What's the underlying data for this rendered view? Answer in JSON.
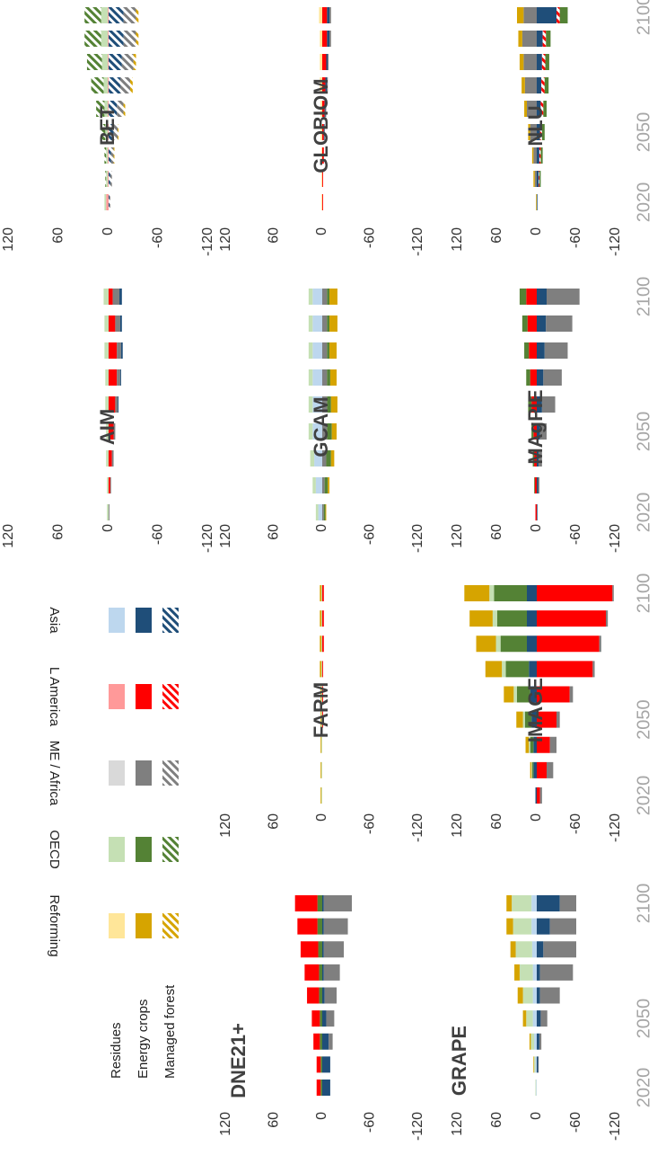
{
  "chart_data": {
    "type": "bar",
    "categories": [
      "2020",
      null,
      null,
      "2050",
      null,
      null,
      null,
      null,
      "2100"
    ],
    "ylim": [
      -120,
      120
    ],
    "yticks": [
      120,
      60,
      0,
      -60,
      -120
    ],
    "legend": {
      "columns": [
        {
          "name": "Reforming",
          "colors": [
            "#ffe699",
            "#d6a400",
            "#d6a400"
          ]
        },
        {
          "name": "OECD",
          "colors": [
            "#c5e0b4",
            "#548235",
            "#548235"
          ]
        },
        {
          "name": "ME / Africa",
          "colors": [
            "#d9d9d9",
            "#7f7f7f",
            "#7f7f7f"
          ]
        },
        {
          "name": "L America",
          "colors": [
            "#ff9999",
            "#ff0000",
            "#ff0000"
          ]
        },
        {
          "name": "Asia",
          "colors": [
            "#bdd7ee",
            "#1f4e79",
            "#1f4e79"
          ]
        }
      ],
      "rows": [
        "Residues",
        "Energy crops",
        "Managed forest"
      ]
    },
    "panels": [
      {
        "title": "AIM",
        "series": [
          {
            "region": "OECD",
            "kind": "Residues",
            "values": [
              2,
              2,
              3,
              3,
              4,
              4,
              5,
              5,
              6
            ]
          },
          {
            "region": "L America",
            "kind": "Energy crops",
            "values": [
              0,
              -2,
              -4,
              -6,
              -8,
              -10,
              -10,
              -8,
              -5
            ]
          },
          {
            "region": "ME / Africa",
            "kind": "Energy crops",
            "values": [
              -1,
              -1,
              -2,
              -2,
              -3,
              -4,
              -5,
              -6,
              -8
            ]
          },
          {
            "region": "Asia",
            "kind": "Energy crops",
            "values": [
              0,
              0,
              0,
              0,
              -1,
              -1,
              -2,
              -2,
              -3
            ]
          }
        ]
      },
      {
        "title": "BET",
        "series": [
          {
            "region": "L America",
            "kind": "Residues",
            "values": [
              3,
              1,
              1,
              1,
              1,
              1,
              1,
              1,
              1
            ]
          },
          {
            "region": "OECD",
            "kind": "Residues",
            "values": [
              2,
              2,
              2,
              3,
              4,
              5,
              7,
              8,
              8
            ]
          },
          {
            "region": "OECD",
            "kind": "Managed forest",
            "values": [
              0,
              1,
              2,
              5,
              10,
              15,
              18,
              20,
              20
            ]
          },
          {
            "region": "Asia",
            "kind": "Managed forest",
            "values": [
              -1,
              -2,
              -3,
              -6,
              -10,
              -14,
              -16,
              -18,
              -18
            ]
          },
          {
            "region": "ME / Africa",
            "kind": "Managed forest",
            "values": [
              -1,
              -2,
              -3,
              -5,
              -8,
              -12,
              -14,
              -15,
              -15
            ]
          },
          {
            "region": "Reforming",
            "kind": "Managed forest",
            "values": [
              0,
              0,
              -1,
              -1,
              -2,
              -3,
              -3,
              -3,
              -3
            ]
          }
        ]
      },
      {
        "title": "DNE21+",
        "series": [
          {
            "region": "OECD",
            "kind": "Energy crops",
            "values": [
              2,
              2,
              3,
              3,
              4,
              4,
              5,
              6,
              6
            ]
          },
          {
            "region": "L America",
            "kind": "Energy crops",
            "values": [
              5,
              5,
              8,
              10,
              15,
              18,
              22,
              25,
              28
            ]
          },
          {
            "region": "Asia",
            "kind": "Energy crops",
            "values": [
              -10,
              -10,
              -8,
              -5,
              -3,
              -2,
              -2,
              -2,
              -2
            ]
          },
          {
            "region": "ME / Africa",
            "kind": "Energy crops",
            "values": [
              0,
              0,
              -5,
              -10,
              -15,
              -20,
              -25,
              -30,
              -35
            ]
          }
        ]
      },
      {
        "title": "FARM",
        "series": [
          {
            "region": "OECD",
            "kind": "Residues",
            "values": [
              1,
              1,
              1,
              1,
              1,
              1,
              1,
              1,
              1
            ]
          },
          {
            "region": "Reforming",
            "kind": "Energy crops",
            "values": [
              1,
              1,
              1,
              1,
              1,
              2,
              2,
              2,
              2
            ]
          },
          {
            "region": "L America",
            "kind": "Energy crops",
            "values": [
              0,
              0,
              0,
              -1,
              -1,
              -1,
              -2,
              -2,
              -2
            ]
          }
        ]
      },
      {
        "title": "GCAM",
        "series": [
          {
            "region": "Asia",
            "kind": "Residues",
            "values": [
              5,
              8,
              10,
              12,
              12,
              12,
              12,
              12,
              12
            ]
          },
          {
            "region": "OECD",
            "kind": "Residues",
            "values": [
              3,
              4,
              5,
              5,
              5,
              5,
              5,
              5,
              5
            ]
          },
          {
            "region": "ME / Africa",
            "kind": "Energy crops",
            "values": [
              -2,
              -3,
              -5,
              -6,
              -6,
              -6,
              -6,
              -6,
              -6
            ]
          },
          {
            "region": "OECD",
            "kind": "Energy crops",
            "values": [
              -2,
              -4,
              -6,
              -6,
              -5,
              -4,
              -3,
              -3,
              -3
            ]
          },
          {
            "region": "Reforming",
            "kind": "Energy crops",
            "values": [
              -1,
              -2,
              -4,
              -6,
              -8,
              -8,
              -9,
              -10,
              -10
            ]
          }
        ]
      },
      {
        "title": "GLOBIOM",
        "series": [
          {
            "region": "Reforming",
            "kind": "Residues",
            "values": [
              1,
              1,
              1,
              2,
              2,
              3,
              3,
              3,
              4
            ]
          },
          {
            "region": "L America",
            "kind": "Energy crops",
            "values": [
              -1,
              -1,
              -2,
              -2,
              -3,
              -4,
              -5,
              -6,
              -6
            ]
          },
          {
            "region": "Asia",
            "kind": "Energy crops",
            "values": [
              0,
              0,
              0,
              -1,
              -1,
              -2,
              -2,
              -3,
              -3
            ]
          },
          {
            "region": "ME / Africa",
            "kind": "Energy crops",
            "values": [
              0,
              0,
              0,
              0,
              -1,
              -1,
              -1,
              -2,
              -2
            ]
          }
        ]
      },
      {
        "title": "GRAPE",
        "series": [
          {
            "region": "Asia",
            "kind": "Residues",
            "values": [
              1,
              2,
              4,
              6,
              6,
              6,
              7,
              8,
              8
            ]
          },
          {
            "region": "OECD",
            "kind": "Residues",
            "values": [
              1,
              2,
              5,
              10,
              15,
              20,
              25,
              28,
              30
            ]
          },
          {
            "region": "Reforming",
            "kind": "Energy crops",
            "values": [
              0,
              1,
              2,
              5,
              8,
              8,
              8,
              10,
              8
            ]
          },
          {
            "region": "Asia",
            "kind": "Energy crops",
            "values": [
              0,
              -2,
              -4,
              -6,
              -5,
              -5,
              -10,
              -20,
              -35
            ]
          },
          {
            "region": "ME / Africa",
            "kind": "Energy crops",
            "values": [
              0,
              -1,
              -3,
              -10,
              -30,
              -50,
              -50,
              -40,
              -25
            ]
          }
        ]
      },
      {
        "title": "IMAGE",
        "series": [
          {
            "region": "Asia",
            "kind": "Energy crops",
            "values": [
              2,
              5,
              5,
              8,
              10,
              12,
              15,
              15,
              15
            ]
          },
          {
            "region": "OECD",
            "kind": "Energy crops",
            "values": [
              0,
              2,
              5,
              10,
              20,
              35,
              40,
              45,
              50
            ]
          },
          {
            "region": "OECD",
            "kind": "Residues",
            "values": [
              0,
              1,
              2,
              3,
              5,
              6,
              7,
              7,
              7
            ]
          },
          {
            "region": "Reforming",
            "kind": "Energy crops",
            "values": [
              0,
              2,
              5,
              10,
              15,
              25,
              30,
              35,
              38
            ]
          },
          {
            "region": "L America",
            "kind": "Energy crops",
            "values": [
              -5,
              -15,
              -20,
              -30,
              -50,
              -85,
              -95,
              -105,
              -115
            ]
          },
          {
            "region": "ME / Africa",
            "kind": "Energy crops",
            "values": [
              -3,
              -10,
              -10,
              -5,
              -5,
              -3,
              -3,
              -3,
              -2
            ]
          }
        ]
      },
      {
        "title": "MAgPIE",
        "series": [
          {
            "region": "L America",
            "kind": "Energy crops",
            "values": [
              2,
              3,
              4,
              5,
              8,
              10,
              12,
              14,
              16
            ]
          },
          {
            "region": "OECD",
            "kind": "Energy crops",
            "values": [
              0,
              1,
              2,
              3,
              5,
              6,
              7,
              8,
              10
            ]
          },
          {
            "region": "Asia",
            "kind": "Energy crops",
            "values": [
              -1,
              -2,
              -3,
              -5,
              -8,
              -10,
              -12,
              -14,
              -15
            ]
          },
          {
            "region": "ME / Africa",
            "kind": "Energy crops",
            "values": [
              0,
              -2,
              -5,
              -10,
              -20,
              -28,
              -35,
              -40,
              -50
            ]
          }
        ]
      },
      {
        "title": "NLU",
        "series": [
          {
            "region": "ME / Africa",
            "kind": "Energy crops",
            "values": [
              0,
              3,
              5,
              10,
              15,
              18,
              20,
              22,
              20
            ]
          },
          {
            "region": "Reforming",
            "kind": "Energy crops",
            "values": [
              1,
              2,
              2,
              3,
              4,
              5,
              6,
              6,
              10
            ]
          },
          {
            "region": "Asia",
            "kind": "Energy crops",
            "values": [
              -1,
              -3,
              -4,
              -5,
              -6,
              -7,
              -8,
              -9,
              -30
            ]
          },
          {
            "region": "L America",
            "kind": "Managed forest",
            "values": [
              0,
              -1,
              -2,
              -3,
              -4,
              -5,
              -5,
              -5,
              -5
            ]
          },
          {
            "region": "OECD",
            "kind": "Energy crops",
            "values": [
              0,
              -2,
              -3,
              -4,
              -5,
              -6,
              -6,
              -7,
              -12
            ]
          }
        ]
      }
    ]
  }
}
